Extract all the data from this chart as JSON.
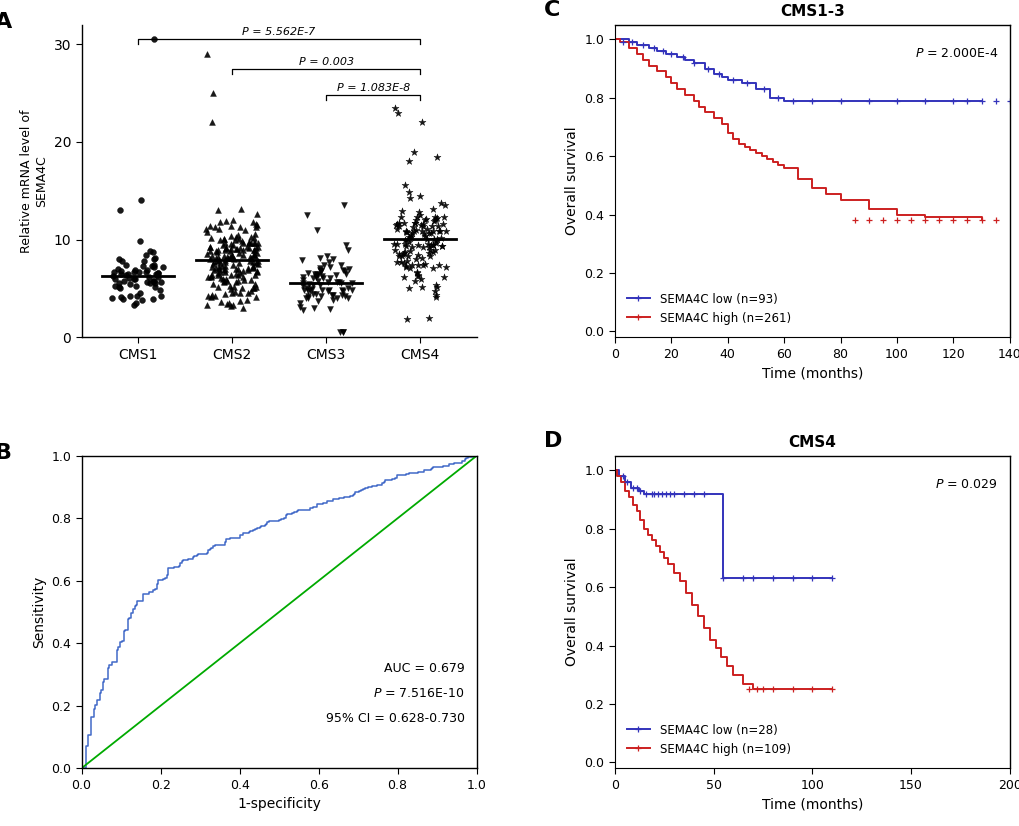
{
  "panel_A": {
    "ylabel": "Relative mRNA level of\nSEMA4C",
    "groups": [
      "CMS1",
      "CMS2",
      "CMS3",
      "CMS4"
    ],
    "medians": [
      6.0,
      7.5,
      5.5,
      9.0
    ],
    "n_samples": [
      70,
      180,
      80,
      140
    ],
    "ylim": [
      0,
      32
    ],
    "yticks": [
      0,
      10,
      20,
      30
    ],
    "significance_lines": [
      {
        "x1": 1,
        "x2": 4,
        "y": 30.5,
        "label": "P = 5.562E-7"
      },
      {
        "x1": 2,
        "x2": 4,
        "y": 27.5,
        "label": "P = 0.003"
      },
      {
        "x1": 3,
        "x2": 4,
        "y": 24.8,
        "label": "P = 1.083E-8"
      }
    ]
  },
  "panel_B": {
    "xlabel": "1-specificity",
    "ylabel": "Sensitivity",
    "xlim": [
      0,
      1
    ],
    "ylim": [
      0,
      1
    ],
    "xticks": [
      0.0,
      0.2,
      0.4,
      0.6,
      0.8,
      1.0
    ],
    "yticks": [
      0.0,
      0.2,
      0.4,
      0.6,
      0.8,
      1.0
    ],
    "roc_color": "#4169c8",
    "diag_color": "#00aa00"
  },
  "panel_C": {
    "title": "CMS1-3",
    "xlabel": "Time (months)",
    "ylabel": "Overall survival",
    "xlim": [
      0,
      140
    ],
    "ylim": [
      -0.02,
      1.05
    ],
    "xticks": [
      0,
      20,
      40,
      60,
      80,
      100,
      120,
      140
    ],
    "yticks": [
      0.0,
      0.2,
      0.4,
      0.6,
      0.8,
      1.0
    ],
    "pvalue": "P = 2.000E-4",
    "low_label": "SEMA4C low (n=93)",
    "high_label": "SEMA4C high (n=261)",
    "low_color": "#3333bb",
    "high_color": "#cc2020"
  },
  "panel_D": {
    "title": "CMS4",
    "xlabel": "Time (months)",
    "ylabel": "Overall survival",
    "xlim": [
      0,
      200
    ],
    "ylim": [
      -0.02,
      1.05
    ],
    "xticks": [
      0,
      50,
      100,
      150,
      200
    ],
    "yticks": [
      0.0,
      0.2,
      0.4,
      0.6,
      0.8,
      1.0
    ],
    "pvalue": "P = 0.029",
    "low_label": "SEMA4C low (n=28)",
    "high_label": "SEMA4C high (n=109)",
    "low_color": "#3333bb",
    "high_color": "#cc2020"
  }
}
